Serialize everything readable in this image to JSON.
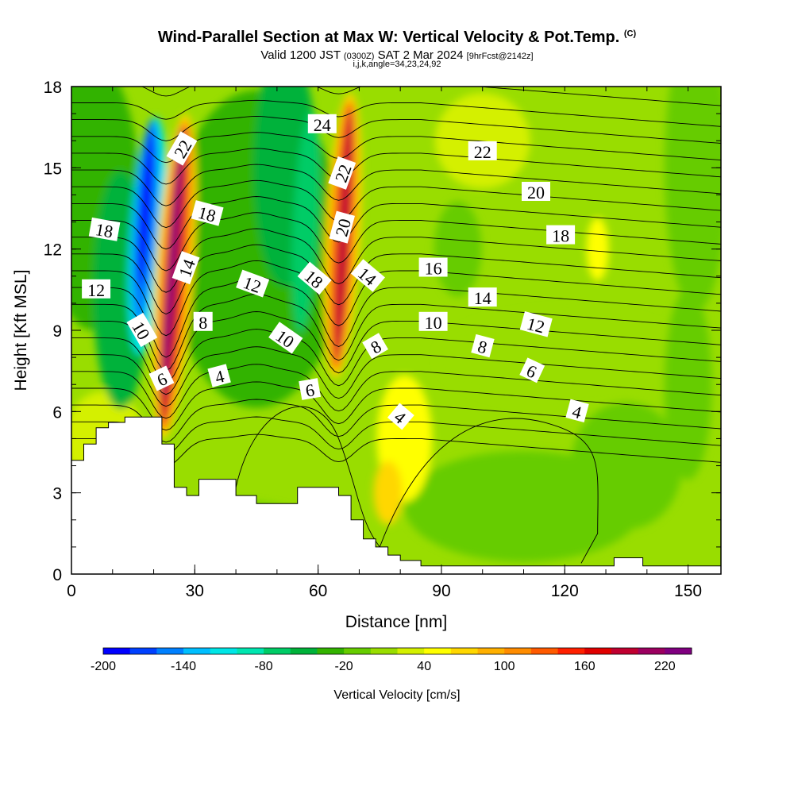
{
  "header": {
    "title": "Wind-Parallel Section at Max W: Vertical Velocity & Pot.Temp.",
    "copyright": "(C)",
    "valid_prefix": "Valid 1200 JST",
    "valid_utc": "(0300Z)",
    "valid_date": "SAT 2 Mar 2024",
    "forecast": "[9hrFcst@2142z]",
    "indices": "i,j,k,angle=34,23,24,92"
  },
  "chart_data": {
    "type": "heatmap",
    "xlabel": "Distance [nm]",
    "ylabel": "Height [Kft MSL]",
    "xlim": [
      0,
      158
    ],
    "ylim": [
      0,
      18
    ],
    "x_ticks": [
      0,
      30,
      60,
      90,
      120,
      150
    ],
    "y_ticks": [
      0,
      3,
      6,
      9,
      12,
      15,
      18
    ],
    "colorbar": {
      "label": "Vertical Velocity [cm/s]",
      "range": [
        -200,
        240
      ],
      "step": 20,
      "tick_labels": [
        -200,
        -140,
        -80,
        -20,
        40,
        100,
        160,
        220
      ],
      "colors": [
        "#0000ff",
        "#0040ff",
        "#0080ff",
        "#00bfff",
        "#00e6e6",
        "#00e6b0",
        "#00cc66",
        "#00b23a",
        "#33b300",
        "#66cc00",
        "#99dd00",
        "#d4f000",
        "#ffff00",
        "#ffd700",
        "#ffb000",
        "#ff8c00",
        "#ff5a00",
        "#ff2000",
        "#e00000",
        "#c00030",
        "#9c0060",
        "#800080"
      ]
    },
    "updrafts": [
      {
        "x": 24,
        "base": 5,
        "top": 18,
        "peak_cm_s": 220
      },
      {
        "x": 66,
        "base": 6.5,
        "top": 18,
        "peak_cm_s": 200
      }
    ],
    "downdrafts": [
      {
        "x": 18,
        "base": 7,
        "top": 17.5,
        "min_cm_s": -200
      },
      {
        "x": 42,
        "base": 6,
        "top": 16,
        "min_cm_s": -60
      },
      {
        "x": 58,
        "base": 6,
        "top": 17,
        "min_cm_s": -60
      }
    ],
    "contour_labels": [
      {
        "x": 8,
        "h": 12.7,
        "text": "18",
        "rot": 10
      },
      {
        "x": 6,
        "h": 10.5,
        "text": "12",
        "rot": 0
      },
      {
        "x": 17,
        "h": 9.0,
        "text": "10",
        "rot": 60
      },
      {
        "x": 22,
        "h": 7.2,
        "text": "6",
        "rot": -25
      },
      {
        "x": 27,
        "h": 15.7,
        "text": "22",
        "rot": -60
      },
      {
        "x": 28,
        "h": 11.3,
        "text": "14",
        "rot": -70
      },
      {
        "x": 33,
        "h": 13.3,
        "text": "18",
        "rot": 15
      },
      {
        "x": 32,
        "h": 9.3,
        "text": "8",
        "rot": 0
      },
      {
        "x": 36,
        "h": 7.3,
        "text": "4",
        "rot": -15
      },
      {
        "x": 44,
        "h": 10.7,
        "text": "12",
        "rot": 20
      },
      {
        "x": 52,
        "h": 8.7,
        "text": "10",
        "rot": 35
      },
      {
        "x": 59,
        "h": 10.9,
        "text": "18",
        "rot": 40
      },
      {
        "x": 58,
        "h": 6.8,
        "text": "6",
        "rot": -10
      },
      {
        "x": 61,
        "h": 16.6,
        "text": "24",
        "rot": 0
      },
      {
        "x": 66,
        "h": 14.8,
        "text": "22",
        "rot": -70
      },
      {
        "x": 66,
        "h": 12.8,
        "text": "20",
        "rot": -75
      },
      {
        "x": 72,
        "h": 11.0,
        "text": "14",
        "rot": 40
      },
      {
        "x": 74,
        "h": 8.4,
        "text": "8",
        "rot": -30
      },
      {
        "x": 80,
        "h": 5.8,
        "text": "4",
        "rot": 40
      },
      {
        "x": 88,
        "h": 11.3,
        "text": "16",
        "rot": 0
      },
      {
        "x": 88,
        "h": 9.3,
        "text": "10",
        "rot": 0
      },
      {
        "x": 100,
        "h": 15.6,
        "text": "22",
        "rot": 0
      },
      {
        "x": 100,
        "h": 10.2,
        "text": "14",
        "rot": 0
      },
      {
        "x": 100,
        "h": 8.4,
        "text": "8",
        "rot": 15
      },
      {
        "x": 113,
        "h": 14.1,
        "text": "20",
        "rot": 0
      },
      {
        "x": 113,
        "h": 9.2,
        "text": "12",
        "rot": 15
      },
      {
        "x": 119,
        "h": 12.5,
        "text": "18",
        "rot": 0
      },
      {
        "x": 112,
        "h": 7.5,
        "text": "6",
        "rot": 25
      },
      {
        "x": 123,
        "h": 6.0,
        "text": "4",
        "rot": 15
      }
    ],
    "terrain": [
      [
        0,
        4.2
      ],
      [
        3,
        4.2
      ],
      [
        3,
        4.8
      ],
      [
        6,
        4.8
      ],
      [
        6,
        5.4
      ],
      [
        9,
        5.4
      ],
      [
        9,
        5.6
      ],
      [
        13,
        5.6
      ],
      [
        13,
        5.8
      ],
      [
        22,
        5.8
      ],
      [
        22,
        4.8
      ],
      [
        25,
        4.8
      ],
      [
        25,
        3.2
      ],
      [
        28,
        3.2
      ],
      [
        28,
        2.9
      ],
      [
        31,
        2.9
      ],
      [
        31,
        3.5
      ],
      [
        40,
        3.5
      ],
      [
        40,
        2.9
      ],
      [
        45,
        2.9
      ],
      [
        45,
        2.6
      ],
      [
        55,
        2.6
      ],
      [
        55,
        3.2
      ],
      [
        65,
        3.2
      ],
      [
        65,
        2.9
      ],
      [
        68,
        2.9
      ],
      [
        68,
        2.0
      ],
      [
        71,
        2.0
      ],
      [
        71,
        1.3
      ],
      [
        74,
        1.3
      ],
      [
        74,
        1.0
      ],
      [
        77,
        1.0
      ],
      [
        77,
        0.7
      ],
      [
        80,
        0.7
      ],
      [
        80,
        0.5
      ],
      [
        85,
        0.5
      ],
      [
        85,
        0.3
      ],
      [
        132,
        0.3
      ],
      [
        132,
        0.6
      ],
      [
        139,
        0.6
      ],
      [
        139,
        0.3
      ],
      [
        158,
        0.3
      ]
    ]
  }
}
